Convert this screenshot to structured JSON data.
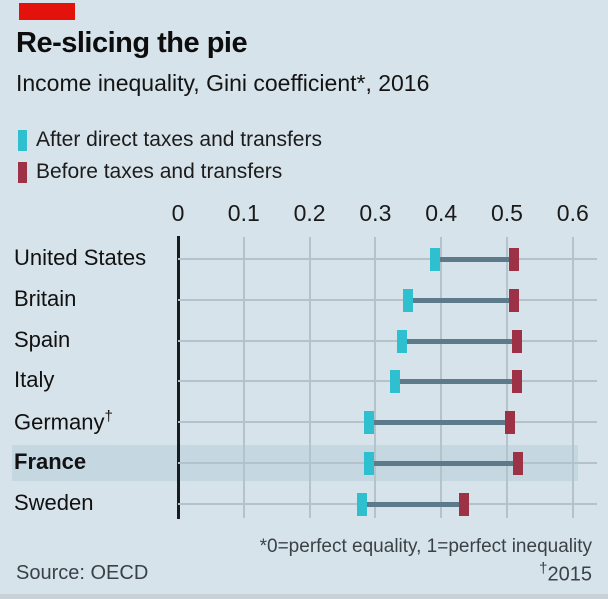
{
  "brand": {
    "red_bar_color": "#e3120b"
  },
  "header": {
    "title": "Re-slicing the pie",
    "subtitle": "Income inequality, Gini coefficient*, 2016"
  },
  "legend": [
    {
      "key": "after",
      "label": "After direct taxes and transfers",
      "color": "#2fc0d0"
    },
    {
      "key": "before",
      "label": "Before taxes and transfers",
      "color": "#9d3145"
    }
  ],
  "chart_data": {
    "type": "dumbbell",
    "title": "Re-slicing the pie",
    "subtitle": "Income inequality, Gini coefficient*, 2016",
    "x_axis": {
      "position": "top",
      "range": [
        0,
        0.6
      ],
      "ticks": [
        0,
        0.1,
        0.2,
        0.3,
        0.4,
        0.5,
        0.6
      ],
      "tick_labels": [
        "0",
        "0.1",
        "0.2",
        "0.3",
        "0.4",
        "0.5",
        "0.6"
      ],
      "grid": true
    },
    "series_names": [
      "After direct taxes and transfers",
      "Before taxes and transfers"
    ],
    "rows": [
      {
        "label": "United States",
        "suffix": "",
        "after": 0.39,
        "before": 0.51,
        "highlighted": false
      },
      {
        "label": "Britain",
        "suffix": "",
        "after": 0.35,
        "before": 0.51,
        "highlighted": false
      },
      {
        "label": "Spain",
        "suffix": "",
        "after": 0.34,
        "before": 0.515,
        "highlighted": false
      },
      {
        "label": "Italy",
        "suffix": "",
        "after": 0.33,
        "before": 0.515,
        "highlighted": false
      },
      {
        "label": "Germany",
        "suffix": "†",
        "after": 0.29,
        "before": 0.505,
        "highlighted": false
      },
      {
        "label": "France",
        "suffix": "",
        "after": 0.29,
        "before": 0.517,
        "highlighted": true
      },
      {
        "label": "Sweden",
        "suffix": "",
        "after": 0.28,
        "before": 0.435,
        "highlighted": false
      }
    ],
    "colors": {
      "after_marker": "#2fc0d0",
      "before_marker": "#9d3145",
      "connector": "#5c7a8a",
      "gridline": "#b4c3cb",
      "highlight_band": "#c5d7e1",
      "background": "#d7e3ea"
    }
  },
  "footnotes": {
    "note": "*0=perfect equality, 1=perfect inequality",
    "dagger_symbol": "†",
    "dagger_year": "2015",
    "source": "Source: OECD"
  }
}
